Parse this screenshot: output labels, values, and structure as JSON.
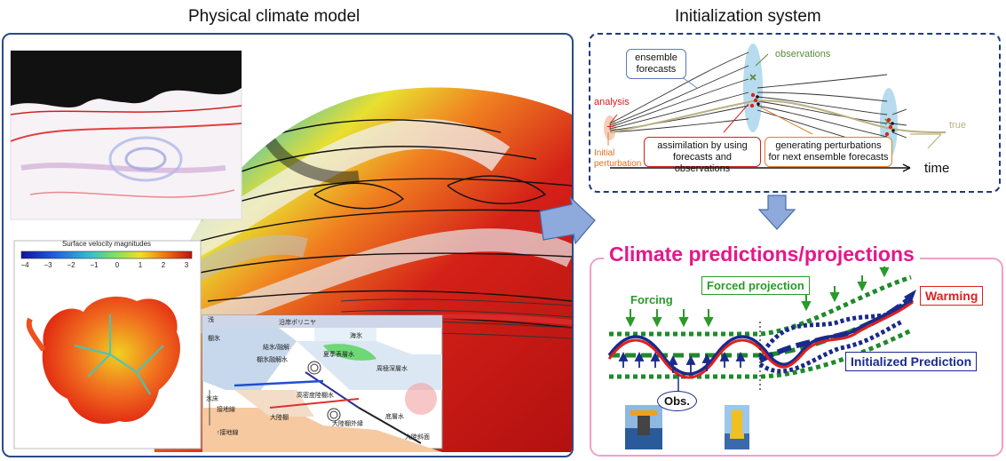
{
  "titles": {
    "physical_model": "Physical climate model",
    "initialization": "Initialization system",
    "predictions": "Climate predictions/projections"
  },
  "colorbar": {
    "title": "Surface velocity magnitudes",
    "ticks": [
      "−4",
      "−3",
      "−2",
      "−1",
      "0",
      "1",
      "2",
      "3"
    ]
  },
  "init": {
    "ensemble_forecasts": "ensemble\nforecasts",
    "observations": "observations",
    "analysis": "analysis",
    "initial_perturbation": "Initial\nperturbation",
    "assimilation": "assimilation by using\nforecasts and observations",
    "generating": "generating perturbations\nfor next ensemble forecasts",
    "true_label": "true",
    "time_label": "time"
  },
  "prediction": {
    "forcing": "Forcing",
    "forced_projection": "Forced projection",
    "warming": "Warming",
    "initialized_prediction": "Initialized Prediction",
    "obs": "Obs."
  },
  "ocean_section": {
    "labels": [
      "沿岸ポリニヤ",
      "海氷",
      "棚氷",
      "結氷/融解",
      "夏季表層水",
      "棚氷融解水",
      "周極深層水",
      "氷床",
      "高密度陸棚水",
      "大陸棚",
      "大陸棚外縁",
      "底層水",
      "接地線",
      "大陸斜面",
      "↑接地線",
      "浅"
    ]
  },
  "colors": {
    "left_border": "#2a4a8a",
    "init_border": "#1e3a7a",
    "pred_border": "#f0a0c8",
    "pred_title": "#e5178a",
    "warming": "#e02020",
    "initialized": "#1a2a8a",
    "forced": "#1f8a2a"
  }
}
